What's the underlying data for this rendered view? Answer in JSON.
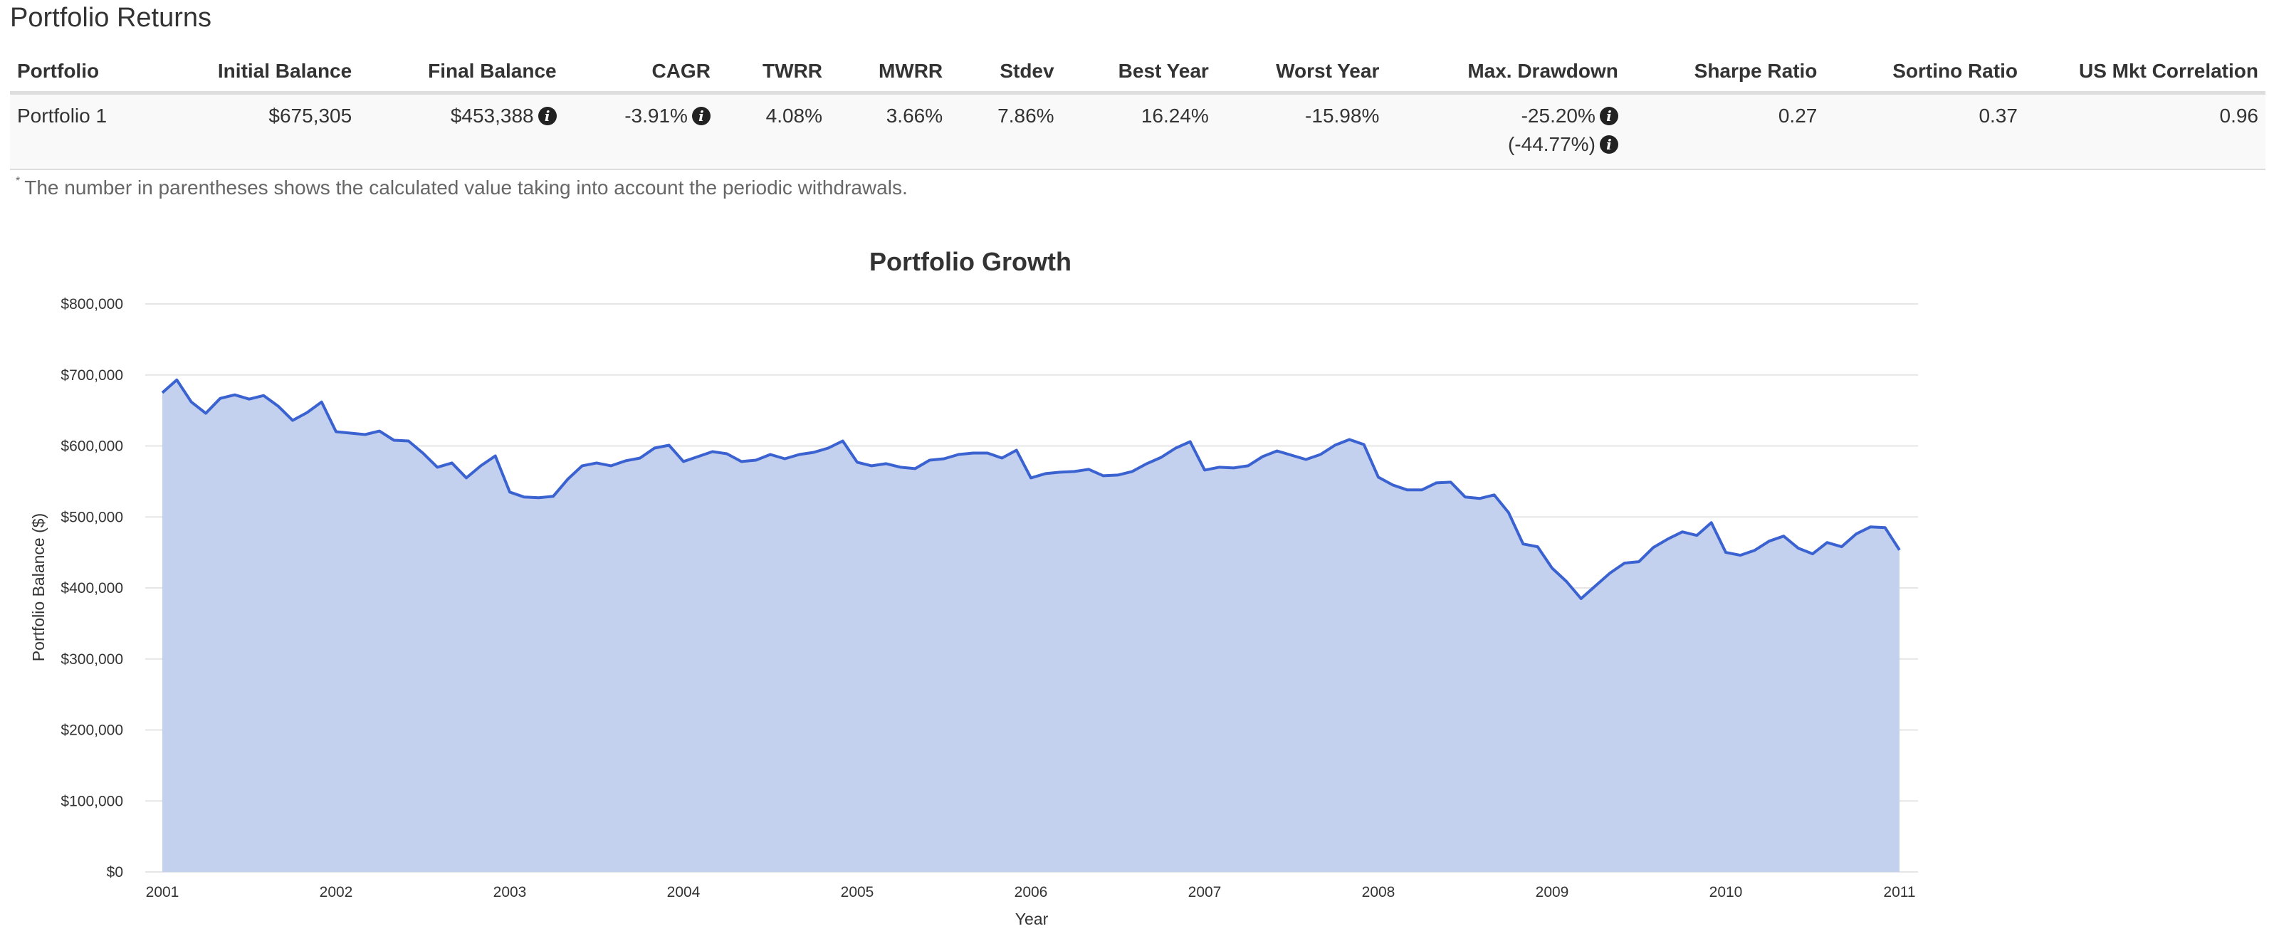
{
  "section_title": "Portfolio Returns",
  "table": {
    "headers": [
      "Portfolio",
      "Initial Balance",
      "Final Balance",
      "CAGR",
      "TWRR",
      "MWRR",
      "Stdev",
      "Best Year",
      "Worst Year",
      "Max. Drawdown",
      "Sharpe Ratio",
      "Sortino Ratio",
      "US Mkt Correlation"
    ],
    "row": {
      "portfolio": "Portfolio 1",
      "initial_balance": "$675,305",
      "final_balance": "$453,388",
      "cagr": "-3.91%",
      "twrr": "4.08%",
      "mwrr": "3.66%",
      "stdev": "7.86%",
      "best_year": "16.24%",
      "worst_year": "-15.98%",
      "max_drawdown": "-25.20%",
      "max_drawdown_with_withdrawals": "(-44.77%)",
      "sharpe_ratio": "0.27",
      "sortino_ratio": "0.37",
      "us_mkt_correlation": "0.96"
    },
    "info_icon": "info-icon"
  },
  "footnote": {
    "marker": "*",
    "text": "The number in parentheses shows the calculated value taking into account the periodic withdrawals."
  },
  "chart_data": {
    "type": "area",
    "title": "Portfolio Growth",
    "xlabel": "Year",
    "ylabel": "Portfolio Balance ($)",
    "xlim": [
      2001,
      2011
    ],
    "ylim": [
      0,
      800000
    ],
    "x_ticks": [
      2001,
      2002,
      2003,
      2004,
      2005,
      2006,
      2007,
      2008,
      2009,
      2010,
      2011
    ],
    "y_ticks": [
      0,
      100000,
      200000,
      300000,
      400000,
      500000,
      600000,
      700000,
      800000
    ],
    "y_tick_labels": [
      "$0",
      "$100,000",
      "$200,000",
      "$300,000",
      "$400,000",
      "$500,000",
      "$600,000",
      "$700,000",
      "$800,000"
    ],
    "grid": true,
    "legend": "none",
    "colors": {
      "line": "#3a62d0",
      "fill": "#c3d0ee"
    },
    "series": [
      {
        "x_start": 2001,
        "x_step_months": 1,
        "values": [
          675000,
          693000,
          662000,
          646000,
          667000,
          672000,
          666000,
          671000,
          656000,
          636000,
          647000,
          662000,
          620000,
          618000,
          616000,
          621000,
          608000,
          607000,
          590000,
          570000,
          576000,
          555000,
          572000,
          586000,
          535000,
          528000,
          527000,
          529000,
          553000,
          572000,
          576000,
          572000,
          579000,
          583000,
          597000,
          601000,
          578000,
          585000,
          592000,
          589000,
          578000,
          580000,
          588000,
          582000,
          588000,
          591000,
          597000,
          607000,
          577000,
          572000,
          575000,
          570000,
          568000,
          580000,
          582000,
          588000,
          590000,
          590000,
          583000,
          594000,
          555000,
          561000,
          563000,
          564000,
          567000,
          558000,
          559000,
          564000,
          575000,
          584000,
          597000,
          606000,
          566000,
          570000,
          569000,
          572000,
          585000,
          593000,
          587000,
          581000,
          588000,
          601000,
          609000,
          602000,
          556000,
          545000,
          538000,
          538000,
          548000,
          549000,
          528000,
          526000,
          531000,
          506000,
          462000,
          458000,
          428000,
          409000,
          385000,
          403000,
          421000,
          435000,
          437000,
          457000,
          469000,
          479000,
          474000,
          492000,
          450000,
          446000,
          453000,
          466000,
          473000,
          456000,
          448000,
          464000,
          458000,
          476000,
          486000,
          485000,
          453388
        ]
      }
    ]
  }
}
